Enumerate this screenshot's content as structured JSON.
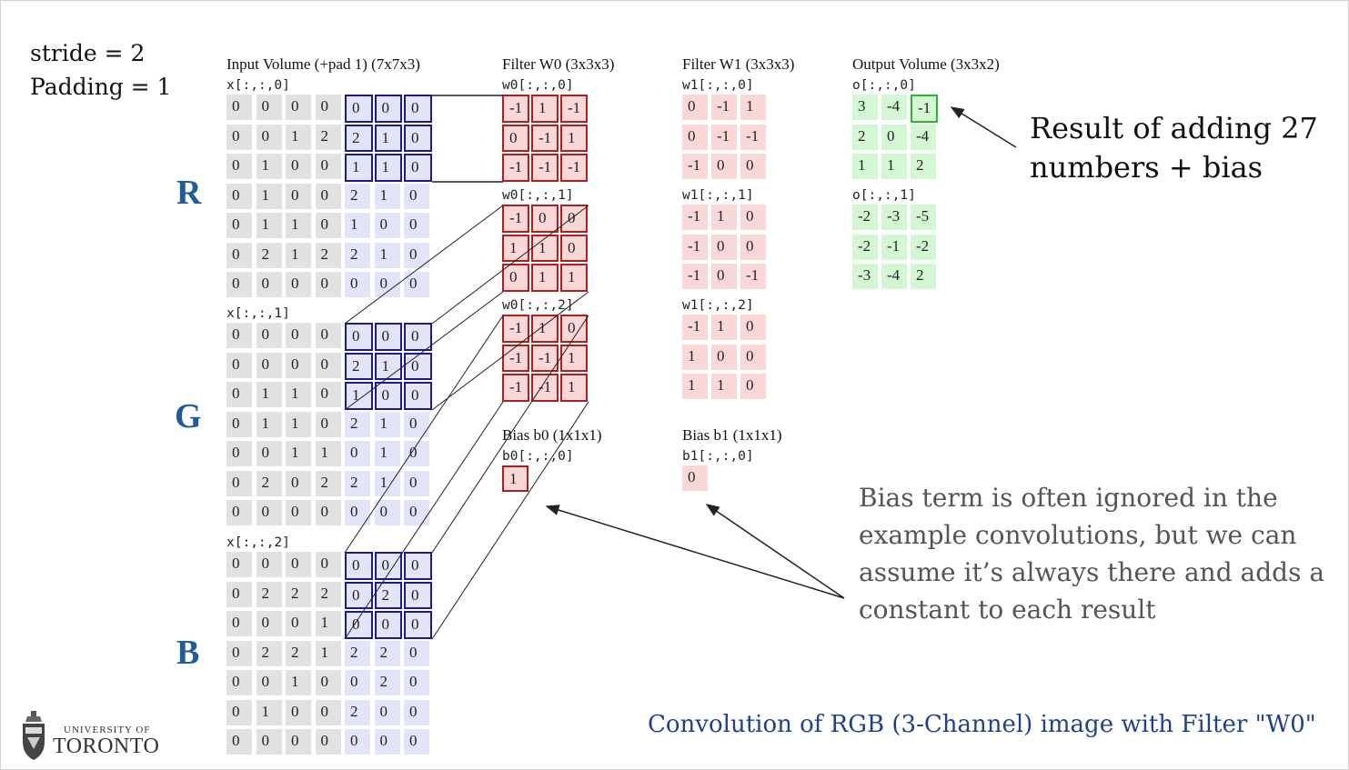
{
  "params": {
    "stride": "stride = 2",
    "padding": "Padding = 1"
  },
  "channels": {
    "r": "R",
    "g": "G",
    "b": "B"
  },
  "input": {
    "title": "Input Volume (+pad 1) (7x7x3)",
    "slices": [
      {
        "label": "x[:,:,0]",
        "rows": [
          [
            0,
            0,
            0,
            0,
            0,
            0,
            0
          ],
          [
            0,
            0,
            1,
            2,
            2,
            1,
            0
          ],
          [
            0,
            1,
            0,
            0,
            1,
            1,
            0
          ],
          [
            0,
            1,
            0,
            0,
            2,
            1,
            0
          ],
          [
            0,
            1,
            1,
            0,
            1,
            0,
            0
          ],
          [
            0,
            2,
            1,
            2,
            2,
            1,
            0
          ],
          [
            0,
            0,
            0,
            0,
            0,
            0,
            0
          ]
        ]
      },
      {
        "label": "x[:,:,1]",
        "rows": [
          [
            0,
            0,
            0,
            0,
            0,
            0,
            0
          ],
          [
            0,
            0,
            0,
            0,
            2,
            1,
            0
          ],
          [
            0,
            1,
            1,
            0,
            1,
            0,
            0
          ],
          [
            0,
            1,
            1,
            0,
            2,
            1,
            0
          ],
          [
            0,
            0,
            1,
            1,
            0,
            1,
            0
          ],
          [
            0,
            2,
            0,
            2,
            2,
            1,
            0
          ],
          [
            0,
            0,
            0,
            0,
            0,
            0,
            0
          ]
        ]
      },
      {
        "label": "x[:,:,2]",
        "rows": [
          [
            0,
            0,
            0,
            0,
            0,
            0,
            0
          ],
          [
            0,
            2,
            2,
            2,
            0,
            2,
            0
          ],
          [
            0,
            0,
            0,
            1,
            0,
            0,
            0
          ],
          [
            0,
            2,
            2,
            1,
            2,
            2,
            0
          ],
          [
            0,
            0,
            1,
            0,
            0,
            2,
            0
          ],
          [
            0,
            1,
            0,
            0,
            2,
            0,
            0
          ],
          [
            0,
            0,
            0,
            0,
            0,
            0,
            0
          ]
        ]
      }
    ]
  },
  "filter_w0": {
    "title": "Filter W0 (3x3x3)",
    "slices": [
      {
        "label": "w0[:,:,0]",
        "rows": [
          [
            -1,
            1,
            -1
          ],
          [
            0,
            -1,
            1
          ],
          [
            -1,
            -1,
            -1
          ]
        ]
      },
      {
        "label": "w0[:,:,1]",
        "rows": [
          [
            -1,
            0,
            0
          ],
          [
            1,
            1,
            0
          ],
          [
            0,
            1,
            1
          ]
        ]
      },
      {
        "label": "w0[:,:,2]",
        "rows": [
          [
            -1,
            1,
            0
          ],
          [
            -1,
            -1,
            1
          ],
          [
            -1,
            -1,
            1
          ]
        ]
      }
    ],
    "bias": {
      "title": "Bias b0 (1x1x1)",
      "label": "b0[:,:,0]",
      "value": 1
    }
  },
  "filter_w1": {
    "title": "Filter W1 (3x3x3)",
    "slices": [
      {
        "label": "w1[:,:,0]",
        "rows": [
          [
            0,
            -1,
            1
          ],
          [
            0,
            -1,
            -1
          ],
          [
            -1,
            0,
            0
          ]
        ]
      },
      {
        "label": "w1[:,:,1]",
        "rows": [
          [
            -1,
            1,
            0
          ],
          [
            -1,
            0,
            0
          ],
          [
            -1,
            0,
            -1
          ]
        ]
      },
      {
        "label": "w1[:,:,2]",
        "rows": [
          [
            -1,
            1,
            0
          ],
          [
            1,
            0,
            0
          ],
          [
            1,
            1,
            0
          ]
        ]
      }
    ],
    "bias": {
      "title": "Bias b1 (1x1x1)",
      "label": "b1[:,:,0]",
      "value": 0
    }
  },
  "output": {
    "title": "Output Volume (3x3x2)",
    "slices": [
      {
        "label": "o[:,:,0]",
        "rows": [
          [
            3,
            -4,
            -1
          ],
          [
            2,
            0,
            -4
          ],
          [
            1,
            1,
            2
          ]
        ]
      },
      {
        "label": "o[:,:,1]",
        "rows": [
          [
            -2,
            -3,
            -5
          ],
          [
            -2,
            -1,
            -2
          ],
          [
            -3,
            -4,
            2
          ]
        ]
      }
    ]
  },
  "annotations": {
    "result_line1": "Result of adding 27",
    "result_line2": "numbers + bias",
    "bias_line1": "Bias term is often ignored in the",
    "bias_line2": "example convolutions, but we can",
    "bias_line3": "assume it’s always there and adds a",
    "bias_line4": "constant to each result",
    "caption": "Convolution of RGB (3-Channel) image with Filter \"W0\""
  },
  "logo": {
    "university": "UNIVERSITY OF",
    "toronto": "TORONTO"
  },
  "colors": {
    "input_cell": "#e1e1e1",
    "input_cell_right": "#e3e4fa",
    "filter_cell": "#fbd8d8",
    "output_cell": "#d3f7d3",
    "window_border": "#1b1b90",
    "filter_border": "#b01e1e",
    "output_highlight": "#2bb52b",
    "channel_label": "#1f5c99",
    "caption": "#1f3f8f"
  }
}
